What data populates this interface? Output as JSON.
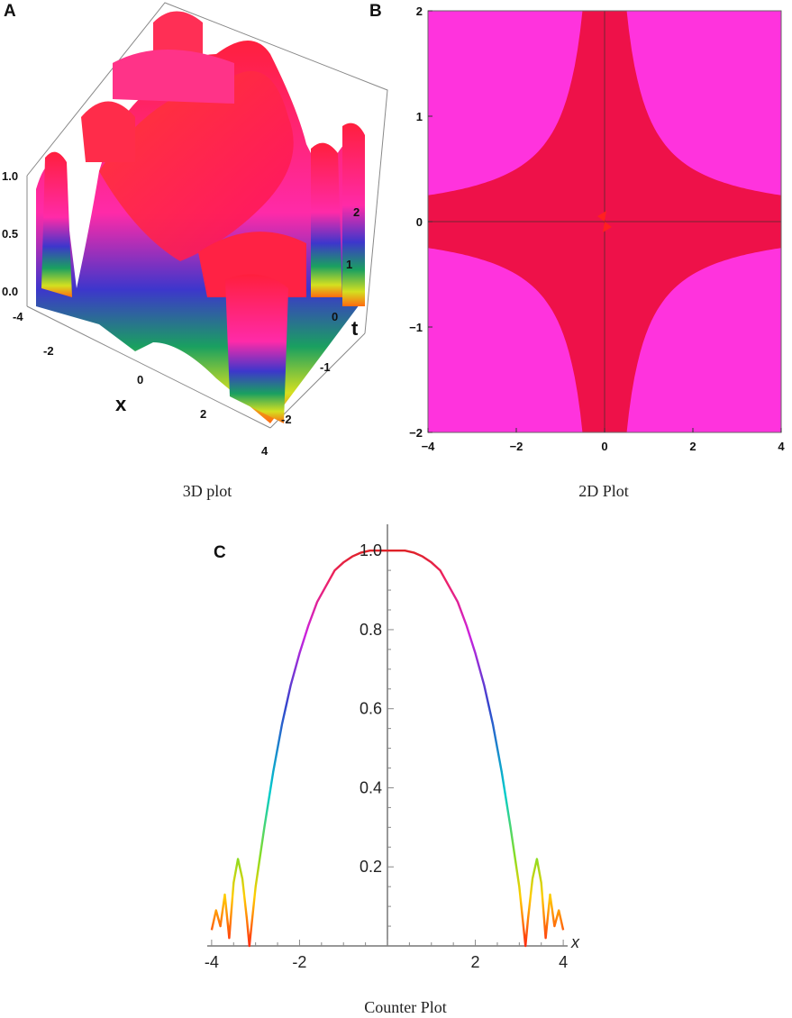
{
  "panels": {
    "a": {
      "letter": "A",
      "caption": "3D plot"
    },
    "b": {
      "letter": "B",
      "caption": "2D Plot"
    },
    "c": {
      "letter": "C",
      "caption": "Counter Plot"
    }
  },
  "colors": {
    "surface_top": "#ff1744",
    "magenta": "#ff22dd",
    "blue": "#3333cc",
    "green": "#1a9a3a",
    "yellow": "#ffe000",
    "background": "#ee1149"
  },
  "chart_data": [
    {
      "type": "surface3d",
      "xlabel": "x",
      "ylabel": "t",
      "zlabel": "",
      "x_ticks": [
        -4,
        -2,
        0,
        2,
        4
      ],
      "y_ticks": [
        -2,
        -1,
        0,
        1,
        2
      ],
      "z_ticks": [
        "0.0",
        "0.5",
        "1.0"
      ],
      "xlim": [
        -4,
        4
      ],
      "ylim": [
        -2,
        2
      ],
      "zlim": [
        0,
        1
      ]
    },
    {
      "type": "heatmap",
      "x_ticks": [
        -4,
        -2,
        0,
        2,
        4
      ],
      "y_ticks": [
        -2,
        -1,
        0,
        1,
        2
      ],
      "xlim": [
        -4,
        4
      ],
      "ylim": [
        -2,
        2
      ],
      "color_bands": [
        "#ee1149",
        "#ff33dd",
        "#5522dd",
        "#2277dd",
        "#1a9a3a",
        "#77cc22",
        "#ffe000",
        "#ffffff"
      ]
    },
    {
      "type": "line",
      "xlabel": "x",
      "ylabel": "",
      "x_ticks": [
        "-4",
        "-2",
        "2",
        "4"
      ],
      "y_ticks": [
        "0.2",
        "0.4",
        "0.6",
        "0.8",
        "1.0"
      ],
      "xlim": [
        -4.1,
        4.1
      ],
      "ylim": [
        0,
        1.03
      ],
      "x": [
        -4.0,
        -3.9,
        -3.8,
        -3.7,
        -3.6,
        -3.5,
        -3.4,
        -3.3,
        -3.2,
        -3.14,
        -3.0,
        -2.8,
        -2.6,
        -2.4,
        -2.2,
        -2.0,
        -1.8,
        -1.6,
        -1.4,
        -1.2,
        -1.0,
        -0.8,
        -0.6,
        -0.4,
        -0.2,
        0.0,
        0.2,
        0.4,
        0.6,
        0.8,
        1.0,
        1.2,
        1.4,
        1.6,
        1.8,
        2.0,
        2.2,
        2.4,
        2.6,
        2.8,
        3.0,
        3.14,
        3.2,
        3.3,
        3.4,
        3.5,
        3.6,
        3.7,
        3.8,
        3.9,
        4.0
      ],
      "y": [
        0.04,
        0.09,
        0.05,
        0.13,
        0.02,
        0.16,
        0.22,
        0.17,
        0.07,
        0.0,
        0.15,
        0.3,
        0.44,
        0.56,
        0.66,
        0.74,
        0.81,
        0.87,
        0.91,
        0.95,
        0.97,
        0.985,
        0.995,
        1.0,
        1.0,
        1.0,
        1.0,
        1.0,
        0.995,
        0.985,
        0.97,
        0.95,
        0.91,
        0.87,
        0.81,
        0.74,
        0.66,
        0.56,
        0.44,
        0.3,
        0.15,
        0.0,
        0.07,
        0.17,
        0.22,
        0.16,
        0.02,
        0.13,
        0.05,
        0.09,
        0.04
      ]
    }
  ]
}
